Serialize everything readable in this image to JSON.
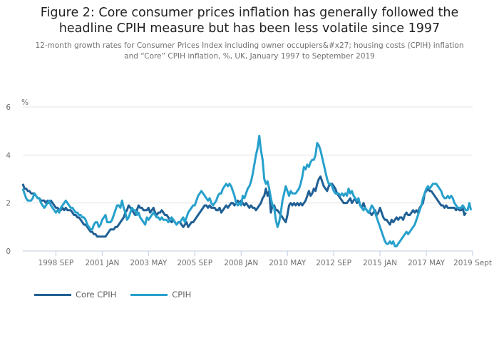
{
  "chart_data": {
    "type": "line",
    "title": "Figure 2: Core consumer prices inflation has generally followed the headline CPIH measure but has been less volatile since 1997",
    "title_lines": [
      "Figure 2: Core consumer prices inflation has generally followed the",
      "headline CPIH measure but has been less volatile since 1997"
    ],
    "subtitle_lines": [
      "12-month growth rates for Consumer Prices Index including owner occupiers&#x27; housing costs (CPIH) inflation",
      "and “Core” CPIH inflation, %, UK, January 1997 to September 2019"
    ],
    "ylabel": "%",
    "xlabel": "",
    "ylim": [
      0,
      6
    ],
    "yticks": [
      "0",
      "2",
      "4",
      "6"
    ],
    "x_start": "1997-01",
    "x_end": "2019-09",
    "frequency": "monthly",
    "xticks": [
      {
        "label": "1998 SEP",
        "month_index": 20
      },
      {
        "label": "2001 JAN",
        "month_index": 48
      },
      {
        "label": "2003 MAY",
        "month_index": 76
      },
      {
        "label": "2005 SEP",
        "month_index": 104
      },
      {
        "label": "2008 JAN",
        "month_index": 132
      },
      {
        "label": "2010 MAY",
        "month_index": 160
      },
      {
        "label": "2012 SEP",
        "month_index": 188
      },
      {
        "label": "2015 JAN",
        "month_index": 216
      },
      {
        "label": "2017 MAY",
        "month_index": 244
      },
      {
        "label": "2019 Sept",
        "month_index": 272
      }
    ],
    "grid": true,
    "legend_position": "bottom-left",
    "series": [
      {
        "name": "Core CPIH",
        "color": "#206095",
        "values": [
          2.8,
          2.6,
          2.6,
          2.5,
          2.5,
          2.4,
          2.4,
          2.4,
          2.3,
          2.2,
          2.2,
          2.1,
          2.1,
          2.1,
          2.0,
          2.1,
          2.0,
          2.1,
          2.0,
          1.9,
          1.8,
          1.8,
          1.7,
          1.7,
          1.8,
          1.7,
          1.8,
          1.7,
          1.7,
          1.7,
          1.6,
          1.5,
          1.5,
          1.4,
          1.4,
          1.3,
          1.2,
          1.1,
          1.1,
          1.0,
          0.9,
          0.8,
          0.8,
          0.7,
          0.7,
          0.6,
          0.6,
          0.6,
          0.6,
          0.6,
          0.6,
          0.7,
          0.8,
          0.9,
          0.9,
          0.9,
          1.0,
          1.0,
          1.1,
          1.2,
          1.3,
          1.4,
          1.6,
          1.7,
          1.9,
          1.8,
          1.7,
          1.6,
          1.5,
          1.7,
          1.9,
          1.8,
          1.8,
          1.7,
          1.7,
          1.7,
          1.8,
          1.6,
          1.7,
          1.8,
          1.6,
          1.5,
          1.6,
          1.6,
          1.7,
          1.6,
          1.5,
          1.5,
          1.4,
          1.3,
          1.2,
          1.3,
          1.2,
          1.1,
          1.2,
          1.2,
          1.1,
          1.0,
          1.1,
          1.2,
          1.0,
          1.1,
          1.2,
          1.2,
          1.3,
          1.4,
          1.5,
          1.6,
          1.7,
          1.8,
          1.9,
          1.9,
          1.8,
          1.9,
          1.8,
          1.8,
          1.8,
          1.7,
          1.7,
          1.8,
          1.6,
          1.7,
          1.8,
          1.9,
          1.8,
          1.9,
          2.0,
          2.0,
          1.9,
          2.0,
          2.1,
          2.0,
          2.1,
          2.0,
          1.9,
          2.0,
          1.9,
          1.8,
          1.9,
          1.8,
          1.8,
          1.7,
          1.8,
          1.9,
          2.0,
          2.2,
          2.3,
          2.6,
          2.3,
          2.5,
          1.6,
          1.9,
          1.9,
          1.7,
          1.7,
          1.6,
          1.5,
          1.4,
          1.3,
          1.2,
          1.5,
          1.9,
          2.0,
          1.9,
          2.0,
          1.9,
          2.0,
          1.9,
          2.0,
          1.9,
          2.0,
          2.1,
          2.3,
          2.5,
          2.3,
          2.4,
          2.6,
          2.5,
          2.8,
          3.0,
          3.1,
          2.9,
          2.7,
          2.6,
          2.5,
          2.7,
          2.8,
          2.8,
          2.7,
          2.6,
          2.4,
          2.3,
          2.2,
          2.1,
          2.0,
          2.0,
          2.0,
          2.1,
          2.2,
          2.0,
          2.1,
          2.2,
          2.0,
          2.1,
          1.9,
          1.8,
          2.0,
          1.8,
          1.7,
          1.6,
          1.6,
          1.5,
          1.6,
          1.7,
          1.5,
          1.6,
          1.8,
          1.6,
          1.4,
          1.3,
          1.3,
          1.2,
          1.1,
          1.3,
          1.2,
          1.3,
          1.4,
          1.3,
          1.4,
          1.4,
          1.3,
          1.5,
          1.6,
          1.5,
          1.5,
          1.6,
          1.7,
          1.6,
          1.7,
          1.6,
          1.8,
          1.9,
          2.0,
          2.4,
          2.5,
          2.6,
          2.5,
          2.5,
          2.4,
          2.3,
          2.2,
          2.1,
          2.0,
          1.9,
          1.9,
          1.8,
          1.9,
          1.8,
          1.8,
          1.8,
          1.8,
          1.8,
          1.7,
          1.8,
          1.7,
          1.7,
          1.8,
          1.5,
          1.6
        ]
      },
      {
        "name": "CPIH",
        "color": "#27a0cc",
        "values": [
          2.6,
          2.4,
          2.2,
          2.1,
          2.1,
          2.1,
          2.2,
          2.4,
          2.3,
          2.2,
          2.2,
          2.0,
          1.9,
          1.8,
          1.9,
          2.0,
          2.1,
          1.9,
          1.8,
          1.7,
          1.6,
          1.7,
          1.6,
          1.8,
          1.9,
          2.0,
          2.1,
          2.0,
          1.9,
          1.8,
          1.8,
          1.7,
          1.6,
          1.6,
          1.5,
          1.5,
          1.4,
          1.4,
          1.3,
          1.1,
          1.0,
          0.9,
          0.9,
          1.1,
          1.2,
          1.2,
          1.0,
          1.1,
          1.3,
          1.4,
          1.5,
          1.2,
          1.2,
          1.2,
          1.3,
          1.5,
          1.7,
          1.9,
          1.9,
          1.8,
          2.1,
          1.8,
          1.6,
          1.3,
          1.4,
          1.6,
          1.8,
          1.7,
          1.7,
          1.5,
          1.6,
          1.4,
          1.3,
          1.2,
          1.1,
          1.4,
          1.3,
          1.4,
          1.5,
          1.6,
          1.5,
          1.4,
          1.4,
          1.3,
          1.4,
          1.3,
          1.3,
          1.3,
          1.2,
          1.3,
          1.4,
          1.3,
          1.2,
          1.1,
          1.2,
          1.2,
          1.3,
          1.4,
          1.2,
          1.4,
          1.6,
          1.7,
          1.8,
          1.9,
          1.9,
          2.1,
          2.3,
          2.4,
          2.5,
          2.4,
          2.3,
          2.2,
          2.1,
          2.2,
          2.0,
          1.9,
          2.0,
          2.1,
          2.3,
          2.4,
          2.4,
          2.6,
          2.7,
          2.8,
          2.7,
          2.8,
          2.7,
          2.5,
          2.3,
          2.0,
          1.9,
          2.0,
          1.9,
          2.3,
          2.2,
          2.4,
          2.6,
          2.7,
          2.9,
          3.2,
          3.6,
          4.0,
          4.3,
          4.8,
          4.2,
          3.8,
          3.0,
          2.8,
          2.9,
          2.6,
          2.2,
          1.9,
          1.8,
          1.3,
          1.0,
          1.2,
          1.6,
          2.1,
          2.4,
          2.7,
          2.5,
          2.3,
          2.5,
          2.4,
          2.4,
          2.4,
          2.5,
          2.6,
          2.8,
          3.1,
          3.5,
          3.4,
          3.6,
          3.5,
          3.7,
          3.8,
          3.8,
          4.0,
          4.5,
          4.4,
          4.2,
          3.9,
          3.6,
          3.3,
          3.0,
          2.8,
          2.8,
          2.7,
          2.5,
          2.4,
          2.4,
          2.4,
          2.3,
          2.4,
          2.3,
          2.4,
          2.3,
          2.6,
          2.4,
          2.5,
          2.3,
          2.2,
          2.1,
          2.2,
          1.9,
          1.8,
          1.7,
          1.8,
          1.7,
          1.6,
          1.7,
          1.9,
          1.8,
          1.6,
          1.4,
          1.2,
          1.0,
          0.8,
          0.6,
          0.4,
          0.3,
          0.3,
          0.4,
          0.3,
          0.4,
          0.2,
          0.2,
          0.3,
          0.4,
          0.5,
          0.6,
          0.7,
          0.8,
          0.7,
          0.8,
          0.9,
          1.0,
          1.1,
          1.3,
          1.5,
          1.7,
          1.9,
          2.2,
          2.4,
          2.6,
          2.7,
          2.6,
          2.7,
          2.8,
          2.8,
          2.8,
          2.7,
          2.6,
          2.5,
          2.3,
          2.2,
          2.2,
          2.3,
          2.2,
          2.3,
          2.2,
          2.0,
          1.9,
          1.8,
          1.8,
          1.8,
          1.9,
          1.8,
          1.7,
          1.7,
          2.0,
          1.7
        ]
      }
    ]
  },
  "legend": {
    "items": [
      {
        "label": "Core CPIH",
        "color": "#206095"
      },
      {
        "label": "CPIH",
        "color": "#27a0cc"
      }
    ]
  },
  "colors": {
    "gridline": "#e0e0e0",
    "axis": "#c0cde0",
    "tick_text": "#707070"
  }
}
